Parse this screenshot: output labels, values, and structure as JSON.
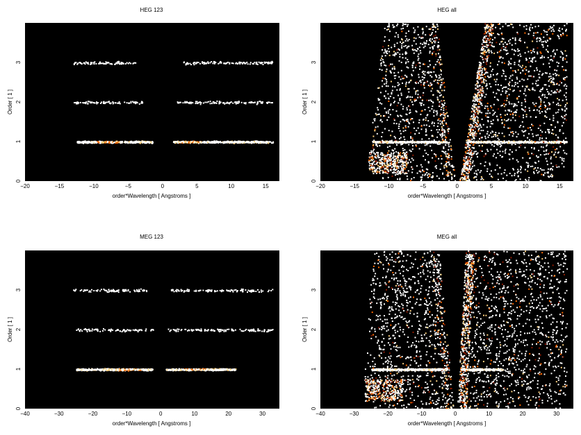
{
  "figure": {
    "background": "#ffffff",
    "plot_background": "#000000"
  },
  "chart_data": [
    {
      "type": "heatmap",
      "title": "HEG 123",
      "xlabel": "order*Wavelength [ Angstroms ]",
      "ylabel": "Order [ 1 ]",
      "xlim": [
        -20,
        17
      ],
      "ylim": [
        0,
        4
      ],
      "xticks": [
        -20,
        -15,
        -10,
        -5,
        0,
        5,
        10,
        15
      ],
      "yticks": [
        0,
        1,
        2,
        3
      ],
      "colormap": [
        "#000000",
        "#8b1a00",
        "#ff6a00",
        "#ffd27f",
        "#ffffff"
      ],
      "bands": [
        {
          "order": 1,
          "x_ranges": [
            [
              -12.5,
              -1.5
            ],
            [
              1.5,
              16.0
            ]
          ],
          "density": "high",
          "peak_x": [
            -8,
            4
          ]
        },
        {
          "order": 2,
          "x_ranges": [
            [
              -13.0,
              -3.0
            ],
            [
              2.0,
              16.0
            ]
          ],
          "density": "low"
        },
        {
          "order": 3,
          "x_ranges": [
            [
              -13.0,
              -4.0
            ],
            [
              3.0,
              16.0
            ]
          ],
          "density": "low"
        }
      ]
    },
    {
      "type": "heatmap",
      "title": "HEG all",
      "xlabel": "order*Wavelength [ Angstroms ]",
      "ylabel": "Order [ 1 ]",
      "xlim": [
        -20,
        17
      ],
      "ylim": [
        0,
        4
      ],
      "xticks": [
        -20,
        -15,
        -10,
        -5,
        0,
        5,
        10,
        15
      ],
      "yticks": [
        0,
        1,
        2,
        3
      ],
      "colormap": [
        "#000000",
        "#8b1a00",
        "#ff6a00",
        "#ffd27f",
        "#ffffff"
      ],
      "bands": [
        {
          "order": 1,
          "x_ranges": [
            [
              -12.5,
              -1.5
            ],
            [
              1.5,
              16.0
            ]
          ],
          "density": "high"
        }
      ],
      "background_scatter": "dense",
      "wedge_gap": {
        "x_at_top": [
          -3,
          4
        ],
        "x_at_bottom": [
          -0.3,
          0.3
        ]
      }
    },
    {
      "type": "heatmap",
      "title": "MEG 123",
      "xlabel": "order*Wavelength [ Angstroms ]",
      "ylabel": "Order [ 1 ]",
      "xlim": [
        -40,
        35
      ],
      "ylim": [
        0,
        4
      ],
      "xticks": [
        -40,
        -30,
        -20,
        -10,
        0,
        10,
        20,
        30
      ],
      "yticks": [
        0,
        1,
        2,
        3
      ],
      "colormap": [
        "#000000",
        "#8b1a00",
        "#ff6a00",
        "#ffd27f",
        "#ffffff"
      ],
      "bands": [
        {
          "order": 1,
          "x_ranges": [
            [
              -25.0,
              -2.5
            ],
            [
              1.5,
              22.0
            ]
          ],
          "density": "high",
          "peak_x": [
            -9,
            10
          ]
        },
        {
          "order": 2,
          "x_ranges": [
            [
              -25.0,
              -2.0
            ],
            [
              2.0,
              33.0
            ]
          ],
          "density": "low"
        },
        {
          "order": 3,
          "x_ranges": [
            [
              -26.0,
              -4.0
            ],
            [
              3.0,
              33.0
            ]
          ],
          "density": "low"
        }
      ]
    },
    {
      "type": "heatmap",
      "title": "MEG all",
      "xlabel": "order*Wavelength [ Angstroms ]",
      "ylabel": "Order [ 1 ]",
      "xlim": [
        -40,
        35
      ],
      "ylim": [
        0,
        4
      ],
      "xticks": [
        -40,
        -30,
        -20,
        -10,
        0,
        10,
        20,
        30
      ],
      "yticks": [
        0,
        1,
        2,
        3
      ],
      "colormap": [
        "#000000",
        "#8b1a00",
        "#ff6a00",
        "#ffd27f",
        "#ffffff"
      ],
      "bands": [
        {
          "order": 1,
          "x_ranges": [
            [
              -25.0,
              -2.5
            ],
            [
              1.5,
              14.0
            ]
          ],
          "density": "high"
        }
      ],
      "background_scatter": "dense",
      "wedge_gap": {
        "x_at_top": [
          -5,
          3
        ],
        "x_at_bottom": [
          -0.5,
          0.5
        ]
      }
    }
  ]
}
